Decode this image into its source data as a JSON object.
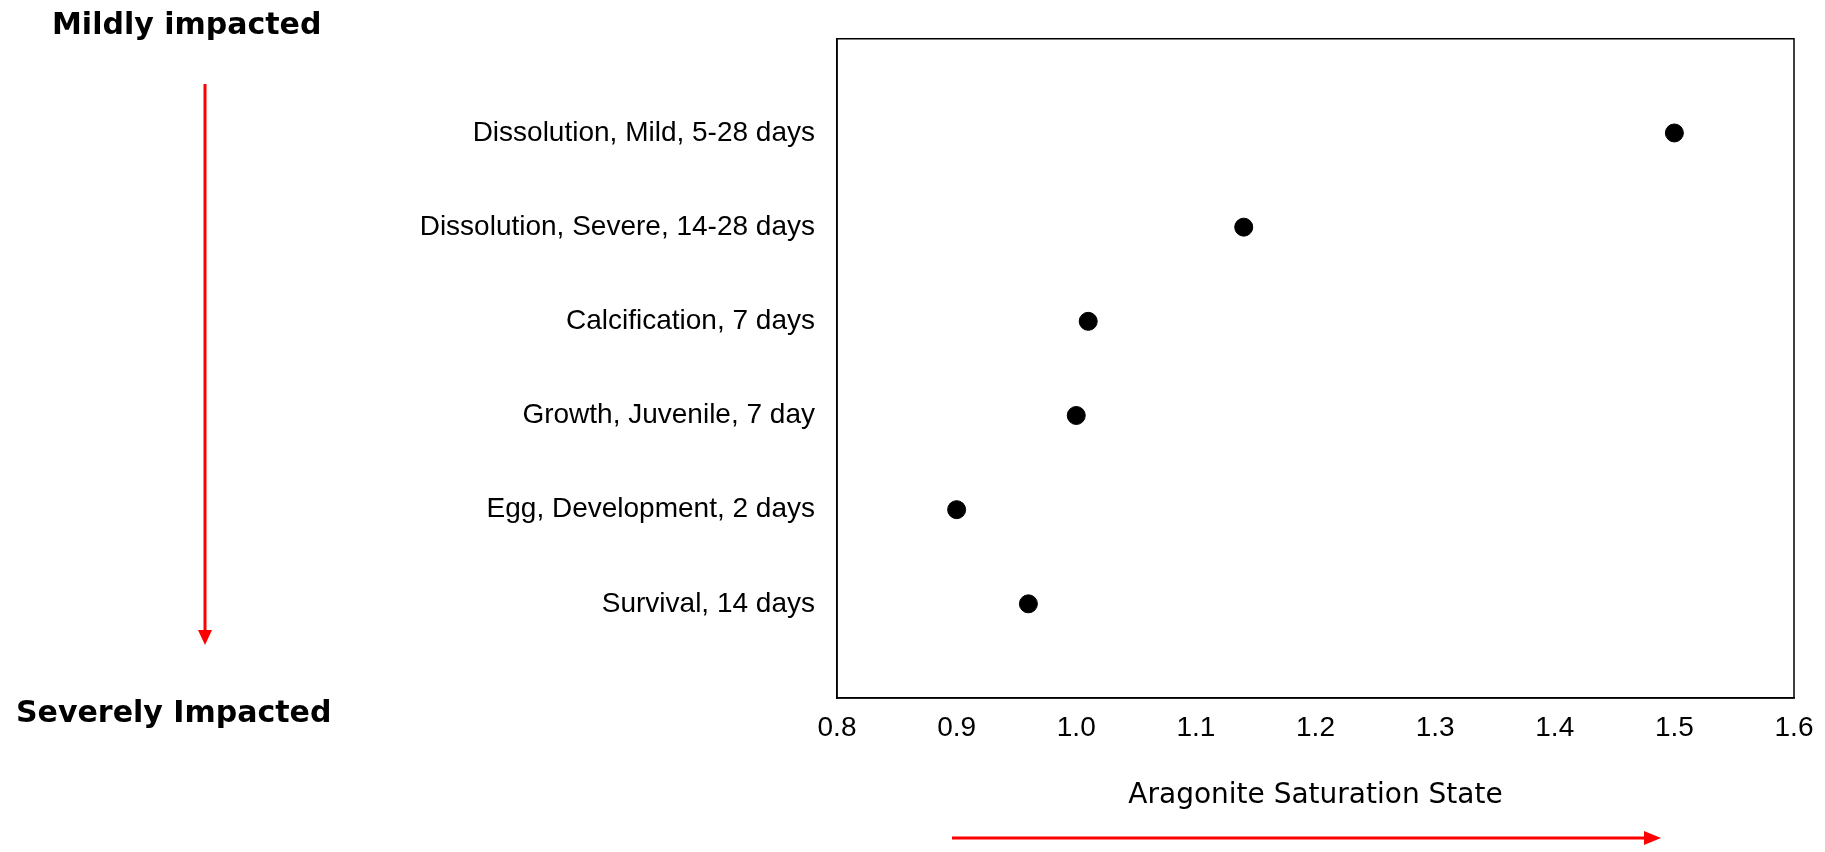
{
  "chart_data": {
    "type": "scatter",
    "categories": [
      "Dissolution, Mild, 5-28 days",
      "Dissolution, Severe, 14-28 days",
      "Calcification, 7 days",
      "Growth, Juvenile, 7 day",
      "Egg, Development, 2 days",
      "Survival, 14 days"
    ],
    "values": [
      1.5,
      1.14,
      1.01,
      1.0,
      0.9,
      0.96
    ],
    "color": "#000000",
    "marker": "circle",
    "orientation": "horizontal",
    "xlabel": "Aragonite Saturation State",
    "xlim": [
      0.8,
      1.6
    ],
    "xticks": [
      0.8,
      0.9,
      {
        "value": 1,
        "label": "1.0"
      },
      1.1,
      1.2,
      1.3,
      1.4,
      1.5,
      1.6
    ],
    "grid": false,
    "annotations": [
      "Mildly impacted",
      "Severely Impacted"
    ]
  }
}
